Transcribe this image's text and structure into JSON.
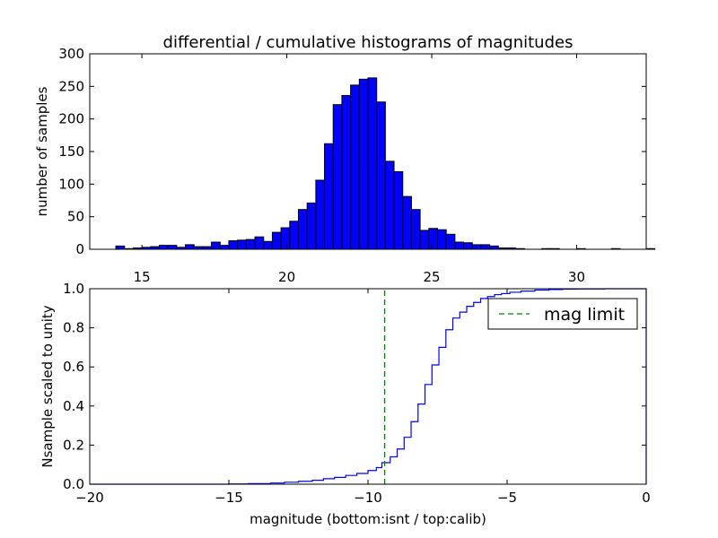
{
  "chart_data": [
    {
      "type": "bar",
      "title": "differential / cumulative histograms of magnitudes",
      "xlabel": "",
      "ylabel": "number of samples",
      "xlim": [
        13.2,
        32.4
      ],
      "ylim": [
        0,
        300
      ],
      "xticks": [
        "15",
        "20",
        "25",
        "30"
      ],
      "xtick_values": [
        15,
        20,
        25,
        30
      ],
      "yticks": [
        "0",
        "50",
        "100",
        "150",
        "200",
        "250",
        "300"
      ],
      "ytick_values": [
        0,
        50,
        100,
        150,
        200,
        250,
        300
      ],
      "bin_width": 0.3,
      "bin_start": 14.1,
      "values": [
        5,
        1,
        2,
        3,
        4,
        6,
        6,
        3,
        7,
        4,
        4,
        11,
        6,
        13,
        14,
        15,
        19,
        12,
        26,
        33,
        43,
        61,
        71,
        106,
        162,
        222,
        236,
        252,
        261,
        263,
        226,
        135,
        119,
        81,
        61,
        29,
        32,
        30,
        23,
        11,
        10,
        7,
        7,
        5,
        2,
        2,
        1,
        0,
        0,
        1,
        1,
        0,
        0,
        1,
        0,
        0,
        0,
        1,
        0,
        0,
        0,
        1
      ]
    },
    {
      "type": "line",
      "step": true,
      "xlabel": "magnitude (bottom:isnt / top:calib)",
      "ylabel": "Nsample scaled to unity",
      "xlim": [
        -20,
        0
      ],
      "ylim": [
        0,
        1
      ],
      "xticks": [
        "−20",
        "−15",
        "−10",
        "−5",
        "0"
      ],
      "xtick_values": [
        -20,
        -15,
        -10,
        -5,
        0
      ],
      "yticks": [
        "0.0",
        "0.2",
        "0.4",
        "0.6",
        "0.8",
        "1.0"
      ],
      "ytick_values": [
        0,
        0.2,
        0.4,
        0.6,
        0.8,
        1.0
      ],
      "cumulative": {
        "x": [
          -20,
          -17,
          -15,
          -14.3,
          -13.5,
          -13.0,
          -12.5,
          -12.0,
          -11.6,
          -11.2,
          -10.8,
          -10.4,
          -10.0,
          -9.7,
          -9.5,
          -9.2,
          -8.95,
          -8.7,
          -8.45,
          -8.2,
          -7.95,
          -7.7,
          -7.45,
          -7.2,
          -6.95,
          -6.7,
          -6.45,
          -6.2,
          -5.95,
          -5.7,
          -5.45,
          -5.2,
          -4.9,
          -4.5,
          -4.0,
          -3.5,
          -3.0,
          -2.5,
          -1.5,
          -0.05,
          0
        ],
        "y": [
          0,
          0,
          0.001,
          0.003,
          0.006,
          0.01,
          0.015,
          0.02,
          0.028,
          0.035,
          0.045,
          0.055,
          0.07,
          0.085,
          0.11,
          0.14,
          0.18,
          0.24,
          0.32,
          0.41,
          0.51,
          0.61,
          0.7,
          0.79,
          0.85,
          0.88,
          0.91,
          0.93,
          0.95,
          0.96,
          0.97,
          0.975,
          0.982,
          0.988,
          0.993,
          0.996,
          0.998,
          0.999,
          1.0,
          1.0,
          0.0
        ]
      },
      "mag_limit": {
        "name": "mag limit",
        "x": -9.4,
        "color": "#008000",
        "style": "dashed"
      },
      "line_color": "#0000ff",
      "legend": {
        "entries": [
          "mag limit"
        ],
        "placement": "top-right"
      }
    }
  ]
}
